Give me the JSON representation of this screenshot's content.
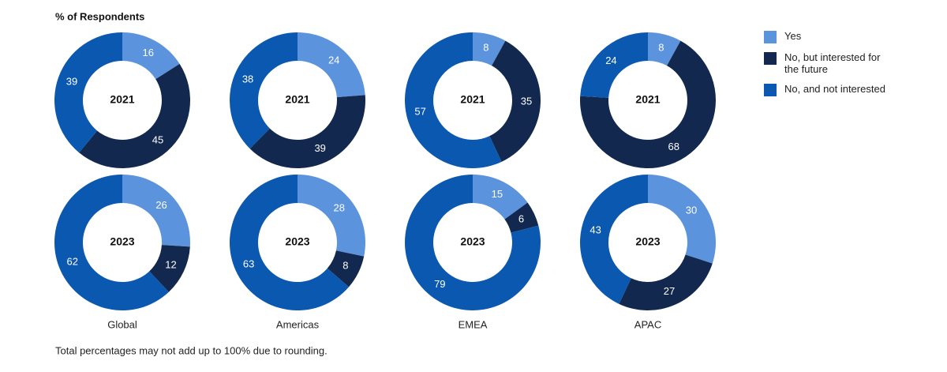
{
  "chart_data": {
    "type": "donut",
    "title": "% of Respondents",
    "years": [
      "2021",
      "2023"
    ],
    "regions": [
      "Global",
      "Americas",
      "EMEA",
      "APAC"
    ],
    "series": [
      {
        "name": "Yes",
        "color": "#5b93dc",
        "values": [
          [
            16,
            24,
            8,
            8
          ],
          [
            26,
            28,
            15,
            30
          ]
        ]
      },
      {
        "name": "No, but interested for the future",
        "color": "#13284f",
        "values": [
          [
            45,
            39,
            35,
            68
          ],
          [
            12,
            8,
            6,
            27
          ]
        ]
      },
      {
        "name": "No, and not interested",
        "color": "#0a58b0",
        "values": [
          [
            39,
            38,
            57,
            24
          ],
          [
            62,
            63,
            79,
            43
          ]
        ]
      }
    ],
    "footnote": "Total percentages may not add up to 100% due to rounding."
  }
}
